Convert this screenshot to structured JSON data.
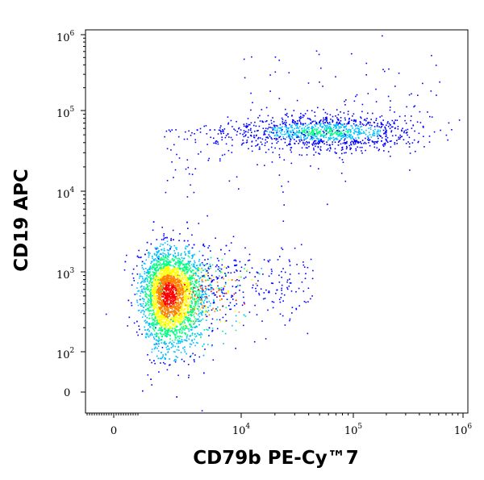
{
  "chart_data": {
    "type": "scatter",
    "subtype": "flow-cytometry-density-dot-plot",
    "title": "",
    "xlabel": "CD79b PE-Cy™7",
    "ylabel": "CD19 APC",
    "x_scale": "biexponential",
    "y_scale": "biexponential",
    "x_ticks": [
      {
        "base": "0",
        "exp": ""
      },
      {
        "base": "10",
        "exp": "4"
      },
      {
        "base": "10",
        "exp": "5"
      },
      {
        "base": "10",
        "exp": "6"
      }
    ],
    "y_ticks": [
      {
        "base": "0",
        "exp": ""
      },
      {
        "base": "10",
        "exp": "2"
      },
      {
        "base": "10",
        "exp": "3"
      },
      {
        "base": "10",
        "exp": "4"
      },
      {
        "base": "10",
        "exp": "5"
      },
      {
        "base": "10",
        "exp": "6"
      }
    ],
    "populations": [
      {
        "name": "",
        "x_center": 1000,
        "y_center": 550,
        "count": 4200,
        "density": "high"
      },
      {
        "name": "",
        "x_center": 55000,
        "y_center": 55000,
        "count": 1100,
        "density": "medium"
      }
    ],
    "density_colors": [
      "#0000ff",
      "#00bfff",
      "#00ff80",
      "#ffff00",
      "#ff8000",
      "#ff0000"
    ],
    "grid": false,
    "legend": "none"
  }
}
